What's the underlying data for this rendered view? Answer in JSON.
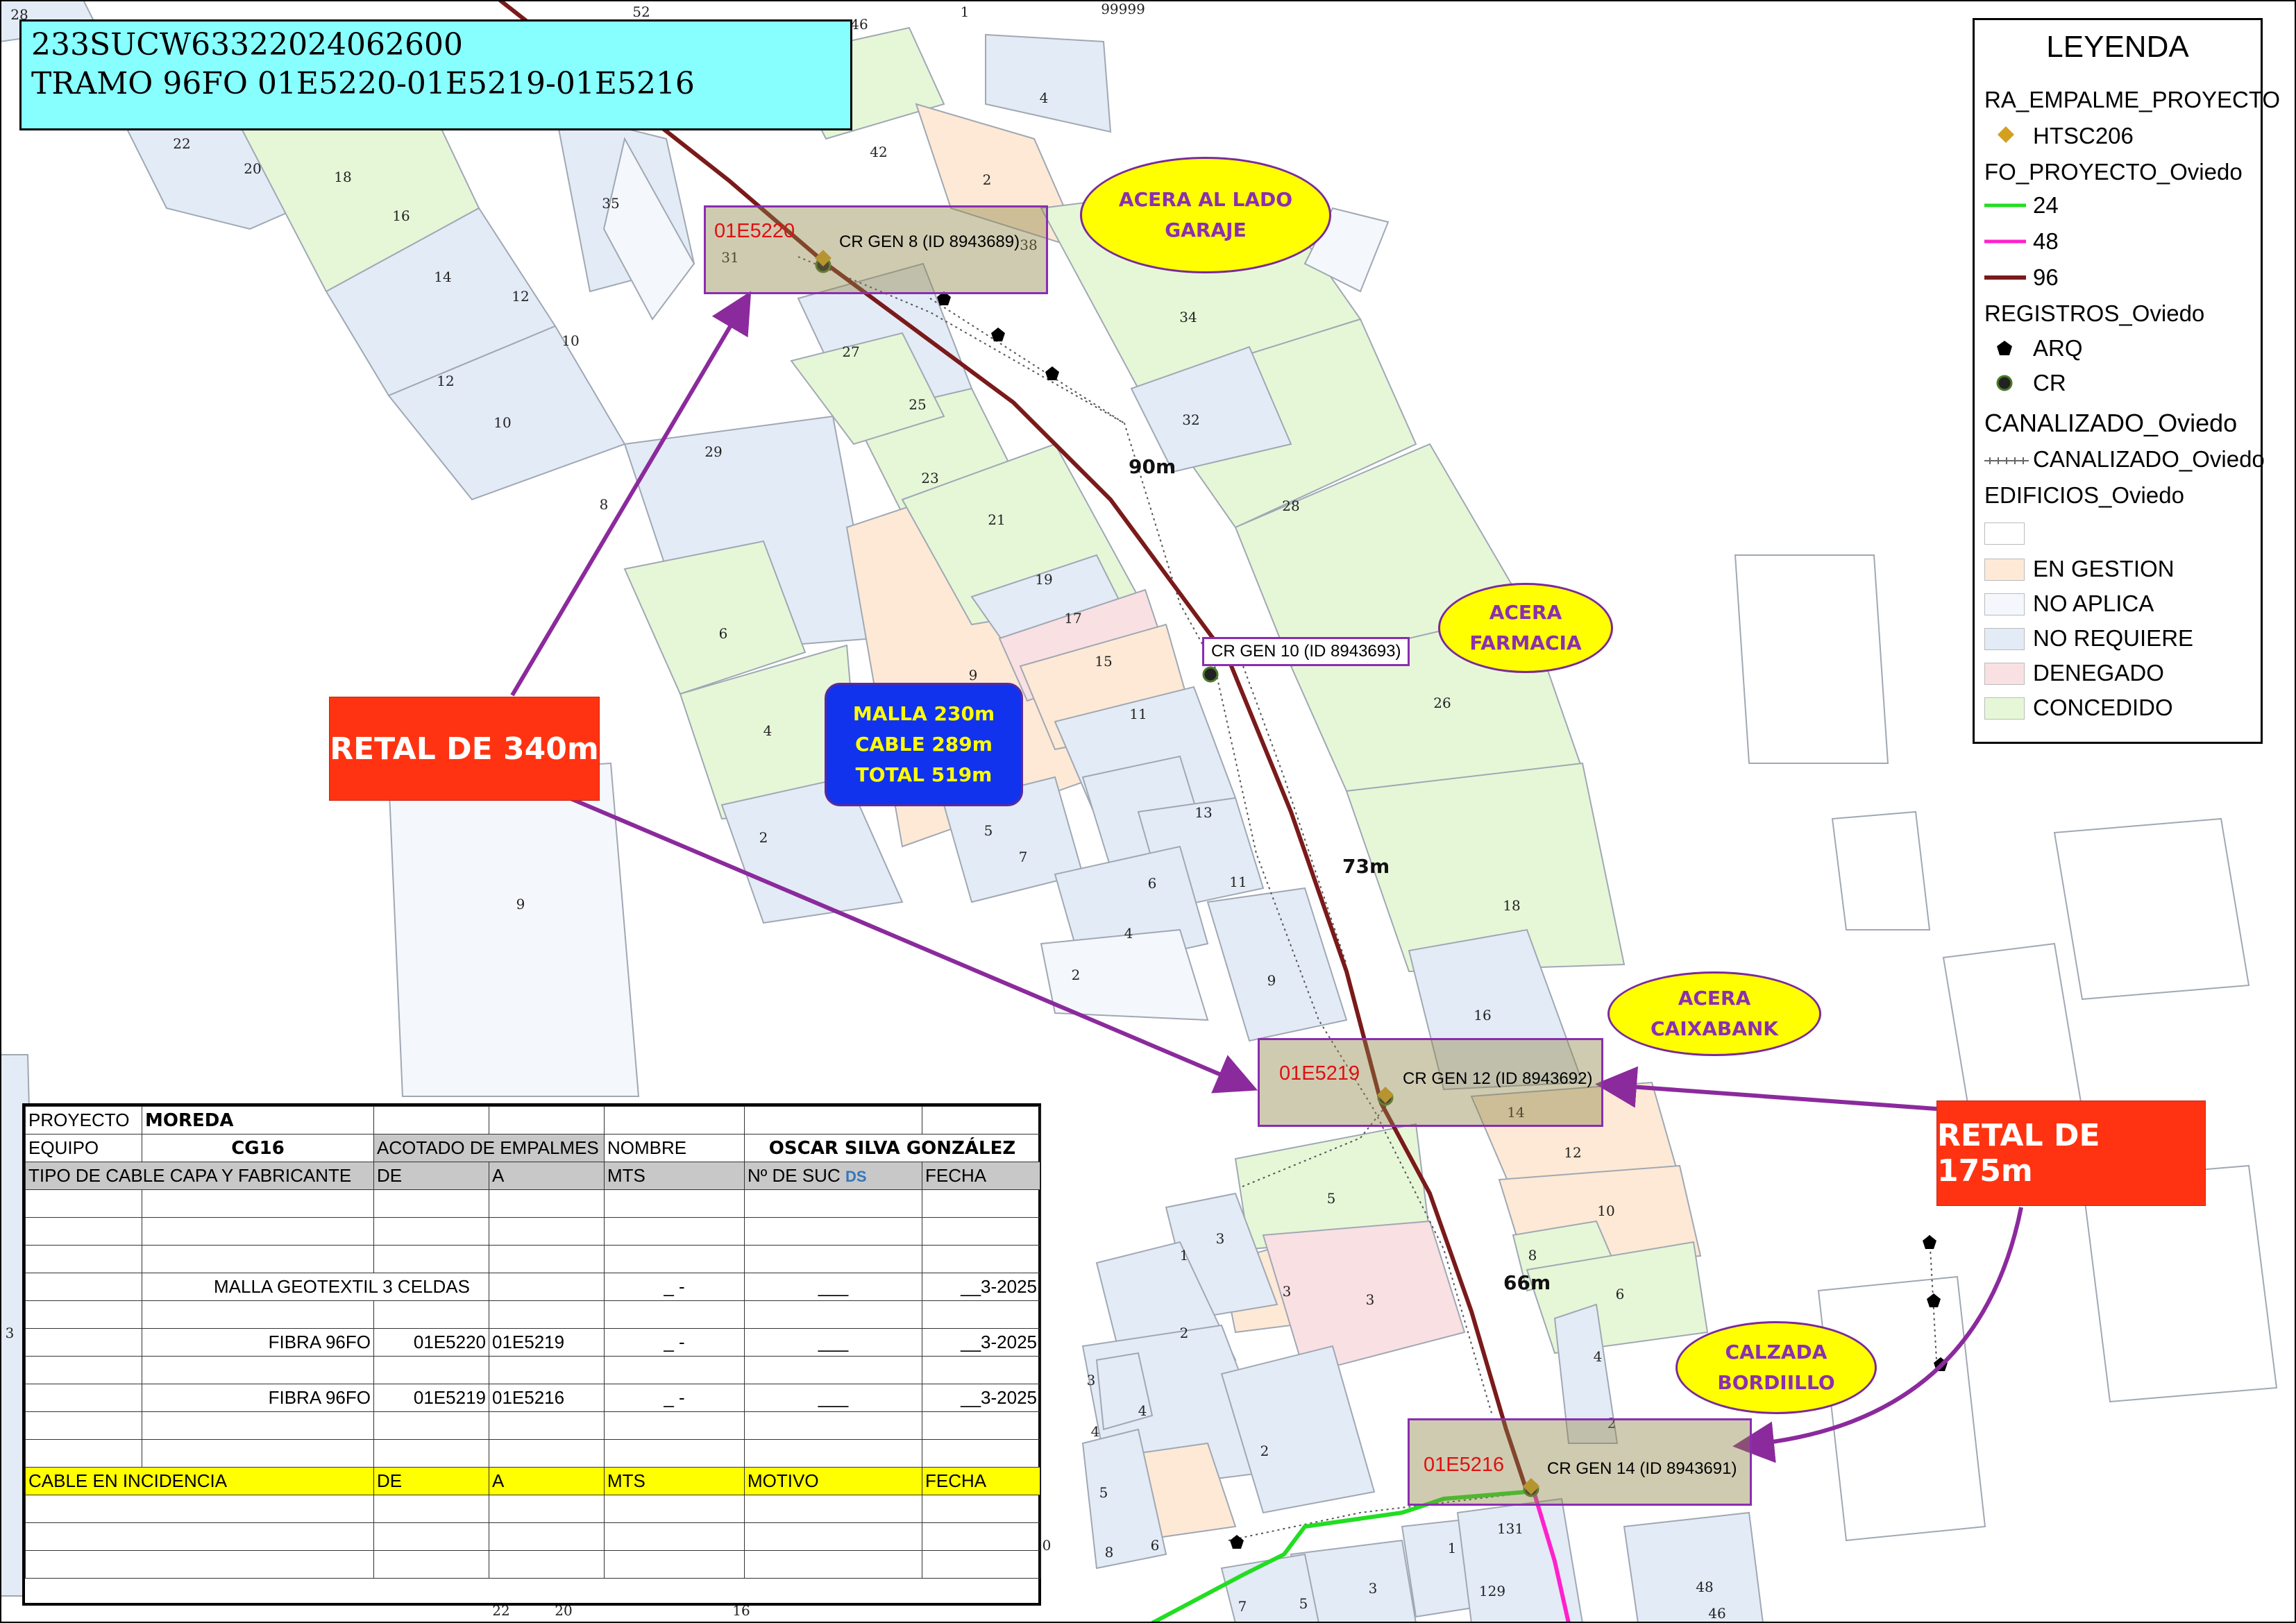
{
  "title": {
    "line1": "233SUCW63322024062600",
    "line2": "TRAMO 96FO 01E5220-01E5219-01E5216"
  },
  "legend": {
    "title": "LEYENDA",
    "empalme_group": "RA_EMPALME_PROYECTO",
    "empalme_item": "HTSC206",
    "fo_group": "FO_PROYECTO_Oviedo",
    "fo_items": [
      {
        "label": "24",
        "color": "#22dd22"
      },
      {
        "label": "48",
        "color": "#ff22cc"
      },
      {
        "label": "96",
        "color": "#7a1a1a"
      }
    ],
    "registros_group": "REGISTROS_Oviedo",
    "registros_items": [
      "ARQ",
      "CR"
    ],
    "canal_group": "CANALIZADO_Oviedo",
    "canal_item": "CANALIZADO_Oviedo",
    "edif_group": "EDIFICIOS_Oviedo",
    "edif_items": [
      {
        "label": "",
        "color": "#ffffff"
      },
      {
        "label": "EN GESTION",
        "color": "#fde9d5"
      },
      {
        "label": "NO APLICA",
        "color": "#f4f7fb"
      },
      {
        "label": "NO REQUIERE",
        "color": "#e3ebf6"
      },
      {
        "label": "DENEGADO",
        "color": "#f9e0e3"
      },
      {
        "label": "CONCEDIDO",
        "color": "#e6f7d8"
      }
    ]
  },
  "bubbles": {
    "acera_garaje": "ACERA AL LADO GARAJE",
    "acera_farmacia": "ACERA FARMACIA",
    "acera_caixabank": "ACERA CAIXABANK",
    "calzada_bordillo": "CALZADA BORDIILLO"
  },
  "retal_340": "RETAL DE 340m",
  "retal_175": "RETAL DE 175m",
  "malla_box": {
    "malla": "MALLA 230m",
    "cable": "CABLE 289m",
    "total": "TOTAL 519m"
  },
  "distances": {
    "d1": "90m",
    "d2": "73m",
    "d3": "66m"
  },
  "splices": [
    {
      "id": "01E5220",
      "label": "CR GEN 8 (ID 8943689)"
    },
    {
      "id": "01E5219",
      "label": "CR GEN 12 (ID 8943692)"
    },
    {
      "id": "01E5216",
      "label": "CR GEN 14 (ID 8943691)"
    }
  ],
  "cr_gen_10": "CR GEN 10 (ID 8943693)",
  "parcel_numbers": {
    "p28": "28",
    "p52": "52",
    "p1a": "1",
    "p99999": "99999",
    "p46a": "46",
    "p22": "22",
    "p20": "20",
    "p18": "18",
    "p16": "16",
    "p14": "14",
    "p12a": "12",
    "p10a": "10",
    "p12b": "12",
    "p10b": "10",
    "p35": "35",
    "p42": "42",
    "p4a": "4",
    "p2a": "2",
    "p38": "38",
    "p31": "31",
    "p34": "34",
    "p27": "27",
    "p25": "25",
    "p29": "29",
    "p8": "8",
    "p23": "23",
    "p21": "21",
    "p32": "32",
    "p28b": "28",
    "p19": "19",
    "p17": "17",
    "p15": "15",
    "p9a": "9",
    "p11a": "11",
    "p6a": "6",
    "p4b": "4",
    "p26": "26",
    "p2b": "2",
    "p5a": "5",
    "p7a": "7",
    "p13": "13",
    "p6b": "6",
    "p11b": "11",
    "p4c": "4",
    "p2c": "2",
    "p9b": "9",
    "p9c": "9",
    "p16b": "16",
    "p14b": "14",
    "p12c": "12",
    "p10c": "10",
    "p8b": "8",
    "p6c": "6",
    "p5b": "5",
    "p3a": "3",
    "p1b": "1",
    "p3b": "3",
    "p3c": "3",
    "p2d": "2",
    "p4d": "4",
    "p2e": "2",
    "p4e": "4",
    "p3d": "3",
    "p4f": "4",
    "p5c": "5",
    "p8c": "8",
    "p6d": "6",
    "p2f": "2",
    "p0": "0",
    "p131": "131",
    "p1c": "1",
    "p129": "129",
    "p3e": "3",
    "p5d": "5",
    "p7b": "7",
    "p22b": "22",
    "p20b": "20",
    "p16c": "16",
    "p48": "48",
    "p46b": "46",
    "p3f": "3"
  },
  "table": {
    "proyecto_label": "PROYECTO",
    "proyecto_value": "MOREDA",
    "equipo_label": "EQUIPO",
    "equipo_value": "CG16",
    "acotado_label": "ACOTADO DE EMPALMES",
    "nombre_label": "NOMBRE",
    "nombre_value": "OSCAR SILVA GONZÁLEZ",
    "headers": [
      "TIPO DE CABLE CAPA Y FABRICANTE",
      "DE",
      "A",
      "MTS",
      "Nº DE SUC",
      "FECHA"
    ],
    "ds_badge": "DS",
    "rows": [
      {
        "desc": "MALLA GEOTEXTIL 3 CELDAS",
        "de": "",
        "a": "",
        "mts": "_ -",
        "suc": "___",
        "fecha": "__3-2025"
      },
      {
        "desc": "FIBRA 96FO",
        "de": "01E5220",
        "a": "01E5219",
        "mts": "_ -",
        "suc": "___",
        "fecha": "__3-2025"
      },
      {
        "desc": "FIBRA 96FO",
        "de": "01E5219",
        "a": "01E5216",
        "mts": "_ -",
        "suc": "___",
        "fecha": "__3-2025"
      }
    ],
    "incidencia_headers": [
      "CABLE EN INCIDENCIA",
      "DE",
      "A",
      "MTS",
      "MOTIVO",
      "FECHA"
    ]
  }
}
